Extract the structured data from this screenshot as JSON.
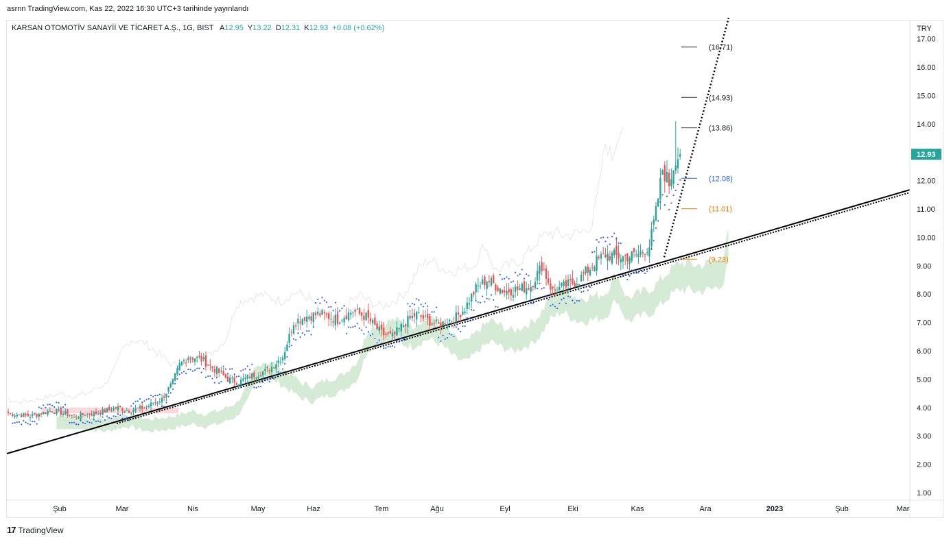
{
  "header": {
    "published": "asrnn TradingView.com, Kas 22, 2022 16:30 UTC+3 tarihinde yayınlandı"
  },
  "symbol": {
    "name": "KARSAN OTOMOTİV SANAYİİ VE TİCARET A.Ş., 1G, BIST",
    "open_label": "A",
    "open": "12.95",
    "high_label": "Y",
    "high": "13.22",
    "low_label": "D",
    "low": "12.31",
    "close_label": "K",
    "close": "12.93",
    "change": "+0.08 (+0.62%)"
  },
  "footer": {
    "logo_mark": "17",
    "logo_text": "TradingView"
  },
  "colors": {
    "up": "#26a69a",
    "down": "#ef5350",
    "sar": "#2962ff",
    "cloud_bull": "#cfe8cf",
    "cloud_bear": "#f7cfcf",
    "trend": "#000000",
    "fib_blue": "#2962ff",
    "fib_orange": "#f57c00",
    "fib_gray": "#131722"
  },
  "chart_data": {
    "type": "candlestick",
    "title": "KARSAN OTOMOTİV SANAYİİ VE TİCARET A.Ş., 1G, BIST",
    "currency": "TRY",
    "ylim": [
      0.6,
      17.6
    ],
    "yticks": [
      "1.00",
      "2.00",
      "3.00",
      "4.00",
      "5.00",
      "6.00",
      "7.00",
      "8.00",
      "9.00",
      "10.00",
      "11.00",
      "12.00",
      "13.00",
      "14.00",
      "15.00",
      "16.00",
      "17.00"
    ],
    "xlabels": [
      "Şub",
      "Mar",
      "Nis",
      "May",
      "Haz",
      "Tem",
      "Ağu",
      "Eyl",
      "Eki",
      "Kas",
      "Ara",
      "2023",
      "Şub",
      "Mar"
    ],
    "last_price": "12.93",
    "anchors": [
      [
        0,
        3.8
      ],
      [
        10,
        3.7
      ],
      [
        20,
        3.9
      ],
      [
        30,
        3.7
      ],
      [
        40,
        3.8
      ],
      [
        50,
        4.0
      ],
      [
        55,
        3.9
      ],
      [
        62,
        4.0
      ],
      [
        70,
        4.3
      ],
      [
        75,
        4.9
      ],
      [
        78,
        5.5
      ],
      [
        82,
        5.8
      ],
      [
        88,
        5.7
      ],
      [
        95,
        5.3
      ],
      [
        100,
        5.0
      ],
      [
        105,
        4.9
      ],
      [
        110,
        5.1
      ],
      [
        118,
        5.3
      ],
      [
        125,
        5.8
      ],
      [
        130,
        7.0
      ],
      [
        135,
        7.2
      ],
      [
        142,
        7.3
      ],
      [
        150,
        7.1
      ],
      [
        157,
        7.4
      ],
      [
        163,
        7.2
      ],
      [
        170,
        6.6
      ],
      [
        175,
        6.5
      ],
      [
        181,
        7.0
      ],
      [
        186,
        7.3
      ],
      [
        190,
        7.1
      ],
      [
        196,
        6.9
      ],
      [
        204,
        7.2
      ],
      [
        208,
        7.5
      ],
      [
        213,
        8.2
      ],
      [
        218,
        8.5
      ],
      [
        226,
        8.1
      ],
      [
        234,
        8.2
      ],
      [
        238,
        8.3
      ],
      [
        243,
        9.0
      ],
      [
        248,
        8.1
      ],
      [
        254,
        8.3
      ],
      [
        260,
        8.5
      ],
      [
        267,
        9.1
      ],
      [
        272,
        9.4
      ],
      [
        280,
        9.3
      ],
      [
        287,
        9.4
      ],
      [
        292,
        9.7
      ],
      [
        295,
        10.9
      ],
      [
        298,
        12.4
      ],
      [
        301,
        11.9
      ],
      [
        304,
        12.8
      ],
      [
        306,
        12.9
      ]
    ],
    "fib_levels": [
      {
        "label": "(16.71)",
        "value": 16.71,
        "color": "#131722"
      },
      {
        "label": "(14.93)",
        "value": 14.93,
        "color": "#131722"
      },
      {
        "label": "(13.86)",
        "value": 13.86,
        "color": "#131722"
      },
      {
        "label": "(12.08)",
        "value": 12.08,
        "color": "#2962ff"
      },
      {
        "label": "(11.01)",
        "value": 11.01,
        "color": "#f57c00"
      },
      {
        "label": "(9.23)",
        "value": 9.23,
        "color": "#f57c00"
      }
    ]
  }
}
